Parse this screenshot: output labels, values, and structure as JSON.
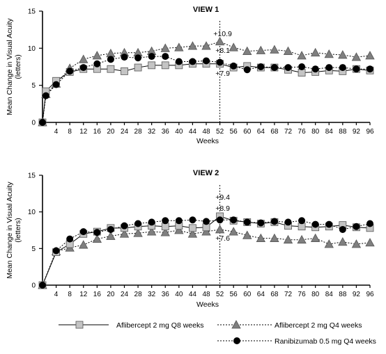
{
  "chart_data": [
    {
      "type": "line",
      "title": "VIEW 1",
      "xlabel": "Weeks",
      "ylabel_line1": "Mean Change in Visual Acuity",
      "ylabel_line2": "(letters)",
      "x_ticks": [
        4,
        8,
        12,
        16,
        20,
        24,
        28,
        32,
        36,
        40,
        44,
        48,
        52,
        56,
        60,
        64,
        68,
        72,
        76,
        80,
        84,
        88,
        92,
        96
      ],
      "y_ticks": [
        0,
        5,
        10,
        15
      ],
      "xlim": [
        0,
        96
      ],
      "ylim": [
        0,
        15
      ],
      "vline_x": 52,
      "annotations": [
        "+10.9",
        "+8.1",
        "+7.9"
      ],
      "x": [
        0,
        1,
        4,
        8,
        12,
        16,
        20,
        24,
        28,
        32,
        36,
        40,
        44,
        48,
        52,
        56,
        60,
        64,
        68,
        72,
        76,
        80,
        84,
        88,
        92,
        96
      ],
      "series": [
        {
          "name": "Aflibercept 2 mg Q8 weeks",
          "marker": "square",
          "values": [
            0,
            4.2,
            5.6,
            6.8,
            7.2,
            7.2,
            7.2,
            6.9,
            7.4,
            7.7,
            7.7,
            7.7,
            7.9,
            7.9,
            7.9,
            7.4,
            7.6,
            7.4,
            7.4,
            7.1,
            6.7,
            6.8,
            7.0,
            6.9,
            7.2,
            7.0
          ]
        },
        {
          "name": "Aflibercept 2 mg Q4 weeks",
          "marker": "triangle",
          "values": [
            0,
            3.8,
            5.2,
            7.3,
            8.5,
            9.0,
            9.3,
            9.4,
            9.4,
            9.6,
            10.0,
            10.1,
            10.3,
            10.3,
            10.9,
            10.1,
            9.6,
            9.7,
            9.8,
            9.6,
            9.0,
            9.4,
            9.2,
            9.1,
            8.8,
            9.0
          ]
        },
        {
          "name": "Ranibizumab 0.5 mg Q4 weeks",
          "marker": "circle",
          "values": [
            0,
            3.6,
            5.1,
            6.9,
            7.4,
            7.9,
            8.5,
            8.8,
            8.7,
            8.9,
            8.9,
            8.2,
            8.2,
            8.3,
            8.1,
            7.6,
            7.1,
            7.5,
            7.4,
            7.4,
            7.5,
            7.2,
            7.4,
            7.4,
            7.2,
            7.2
          ]
        }
      ]
    },
    {
      "type": "line",
      "title": "VIEW 2",
      "xlabel": "Weeks",
      "ylabel_line1": "Mean Change in Visual Acuity",
      "ylabel_line2": "(letters)",
      "x_ticks": [
        4,
        8,
        12,
        16,
        20,
        24,
        28,
        32,
        36,
        40,
        44,
        48,
        52,
        56,
        60,
        64,
        68,
        72,
        76,
        80,
        84,
        88,
        92,
        96
      ],
      "y_ticks": [
        0,
        5,
        10,
        15
      ],
      "xlim": [
        0,
        96
      ],
      "ylim": [
        0,
        15
      ],
      "vline_x": 52,
      "annotations": [
        "+9.4",
        "+8.9",
        "+7.6"
      ],
      "x": [
        0,
        4,
        8,
        12,
        16,
        20,
        24,
        28,
        32,
        36,
        40,
        44,
        48,
        52,
        56,
        60,
        64,
        68,
        72,
        76,
        80,
        84,
        88,
        92,
        96
      ],
      "series": [
        {
          "name": "Aflibercept 2 mg Q8 weeks",
          "marker": "square",
          "values": [
            0,
            4.5,
            5.6,
            7.0,
            7.3,
            7.8,
            7.8,
            8.0,
            8.1,
            8.0,
            8.1,
            7.8,
            7.9,
            9.4,
            8.8,
            8.6,
            8.4,
            8.6,
            8.1,
            8.0,
            7.9,
            8.0,
            8.2,
            7.9,
            7.8
          ]
        },
        {
          "name": "Aflibercept 2 mg Q4 weeks",
          "marker": "triangle",
          "values": [
            0,
            4.6,
            5.1,
            5.5,
            6.3,
            6.7,
            7.0,
            7.1,
            7.3,
            7.2,
            7.5,
            7.0,
            7.3,
            7.6,
            7.3,
            6.8,
            6.4,
            6.4,
            6.2,
            6.2,
            6.4,
            5.6,
            5.9,
            5.6,
            5.8
          ]
        },
        {
          "name": "Ranibizumab 0.5 mg Q4 weeks",
          "marker": "circle",
          "values": [
            0,
            4.7,
            6.3,
            7.3,
            7.2,
            7.6,
            8.1,
            8.4,
            8.6,
            8.8,
            8.8,
            8.9,
            8.7,
            8.9,
            8.9,
            8.6,
            8.5,
            8.7,
            8.6,
            8.8,
            8.3,
            8.3,
            7.6,
            8.0,
            8.4
          ]
        }
      ]
    }
  ],
  "legend": {
    "items": [
      {
        "label": "Aflibercept 2 mg Q8 weeks",
        "marker": "square"
      },
      {
        "label": "Aflibercept 2 mg Q4 weeks",
        "marker": "triangle"
      },
      {
        "label": "Ranibizumab 0.5 mg Q4 weeks",
        "marker": "circle"
      }
    ]
  },
  "colors": {
    "axis": "#000000",
    "square_fill": "#c4c4c4",
    "triangle_fill": "#7f7f7f",
    "circle_fill": "#000000"
  }
}
